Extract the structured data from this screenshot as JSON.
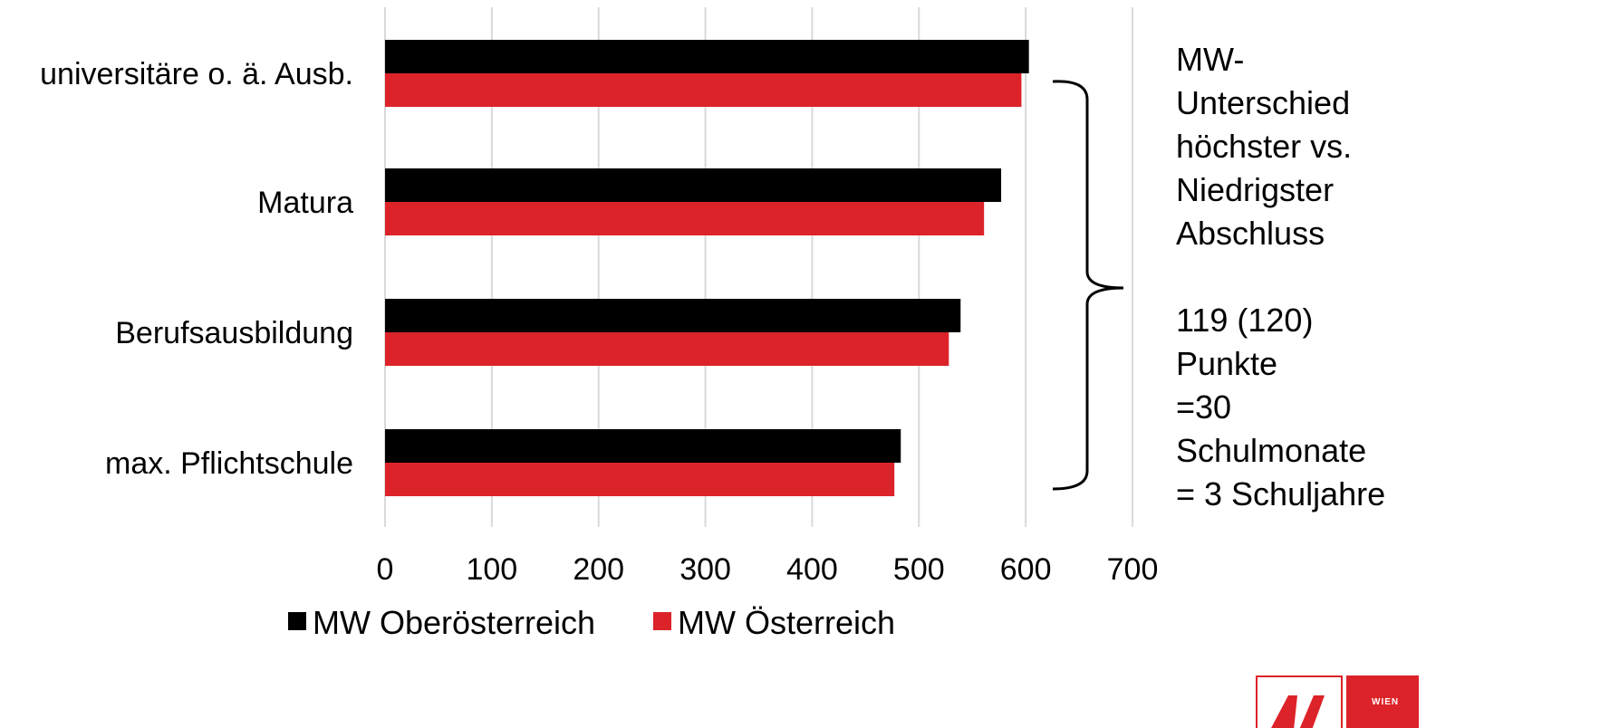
{
  "chart_data": {
    "type": "bar",
    "orientation": "horizontal",
    "categories": [
      "universitäre o. ä. Ausb.",
      "Matura",
      "Berufsausbildung",
      "max. Pflichtschule"
    ],
    "series": [
      {
        "name": "MW Oberösterreich",
        "values": [
          603,
          577,
          539,
          483
        ]
      },
      {
        "name": "MW Österreich",
        "values": [
          596,
          561,
          528,
          477
        ]
      }
    ],
    "xticks": [
      "0",
      "100",
      "200",
      "300",
      "400",
      "500",
      "600",
      "700"
    ],
    "xlim": [
      0,
      700
    ],
    "grid": "vertical",
    "legend_position": "bottom",
    "colors": {
      "MW Oberösterreich": "#000000",
      "MW Österreich": "#dc2329",
      "grid": "#d9d9d9"
    }
  },
  "annotation": {
    "lines_top": [
      "MW-",
      "Unterschied",
      "höchster vs.",
      "Niedrigster",
      "Abschluss"
    ],
    "lines_bottom": [
      "119 (120)",
      "Punkte",
      "=30",
      "Schulmonate",
      "= 3 Schuljahre"
    ]
  },
  "logo": {
    "icon": "ak-wien-logo",
    "text": "WIEN",
    "color": "#dc2329"
  }
}
